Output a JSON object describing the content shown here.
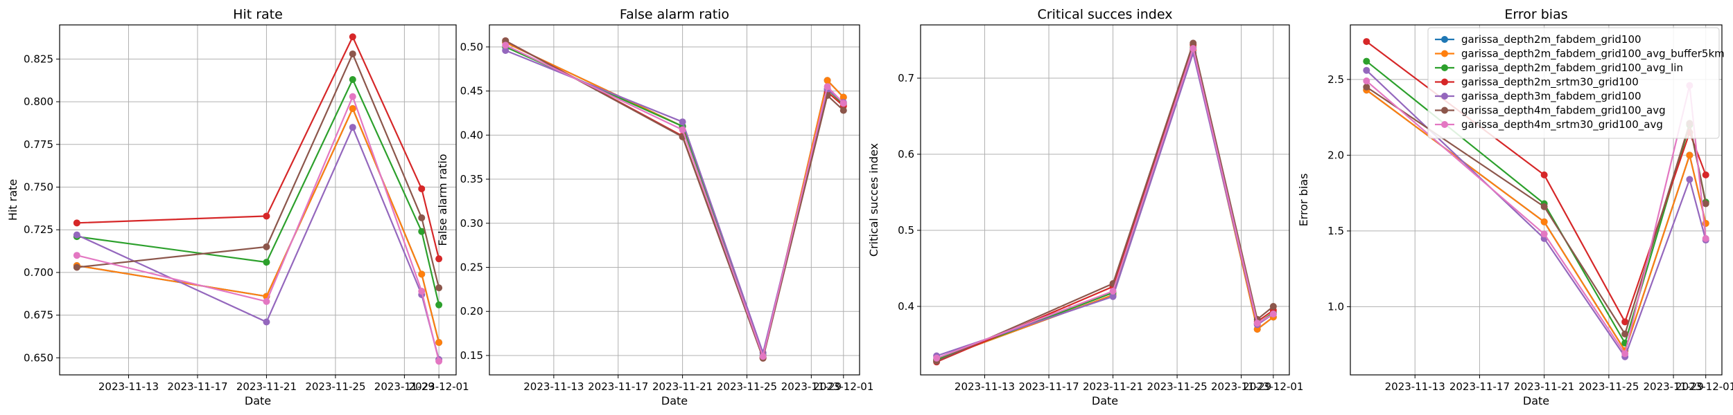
{
  "chart_data": [
    {
      "type": "line",
      "title": "Hit rate",
      "xlabel": "Date",
      "ylabel": "Hit rate",
      "x": [
        "2023-11-10",
        "2023-11-21",
        "2023-11-26",
        "2023-11-30",
        "2023-12-01"
      ],
      "xlim": [
        "2023-11-09",
        "2023-12-02"
      ],
      "xticks": [
        "2023-11-13",
        "2023-11-17",
        "2023-11-21",
        "2023-11-25",
        "2023-11-29",
        "2023-12-01"
      ],
      "ylim": [
        0.64,
        0.845
      ],
      "yticks": [
        0.65,
        0.675,
        0.7,
        0.725,
        0.75,
        0.775,
        0.8,
        0.825
      ],
      "ytick_labels": [
        "0.650",
        "0.675",
        "0.700",
        "0.725",
        "0.750",
        "0.775",
        "0.800",
        "0.825"
      ],
      "grid": true,
      "series": [
        {
          "name": "garissa_depth2m_fabdem_grid100",
          "color": "#1f77b4",
          "values": [
            0.704,
            0.686,
            0.796,
            0.699,
            0.659
          ]
        },
        {
          "name": "garissa_depth2m_fabdem_grid100_avg_buffer5km",
          "color": "#ff7f0e",
          "values": [
            0.704,
            0.686,
            0.796,
            0.699,
            0.659
          ]
        },
        {
          "name": "garissa_depth2m_fabdem_grid100_avg_lin",
          "color": "#2ca02c",
          "values": [
            0.721,
            0.706,
            0.813,
            0.724,
            0.681
          ]
        },
        {
          "name": "garissa_depth2m_srtm30_grid100",
          "color": "#d62728",
          "values": [
            0.729,
            0.733,
            0.838,
            0.749,
            0.708
          ]
        },
        {
          "name": "garissa_depth3m_fabdem_grid100",
          "color": "#9467bd",
          "values": [
            0.722,
            0.671,
            0.785,
            0.687,
            0.649
          ]
        },
        {
          "name": "garissa_depth4m_fabdem_grid100_avg",
          "color": "#8c564b",
          "values": [
            0.703,
            0.715,
            0.828,
            0.732,
            0.691
          ]
        },
        {
          "name": "garissa_depth4m_srtm30_grid100_avg",
          "color": "#e377c2",
          "values": [
            0.71,
            0.683,
            0.803,
            0.689,
            0.648
          ]
        }
      ]
    },
    {
      "type": "line",
      "title": "False alarm ratio",
      "xlabel": "Date",
      "ylabel": "False alarm ratio",
      "x": [
        "2023-11-10",
        "2023-11-21",
        "2023-11-26",
        "2023-11-30",
        "2023-12-01"
      ],
      "xlim": [
        "2023-11-09",
        "2023-12-02"
      ],
      "xticks": [
        "2023-11-13",
        "2023-11-17",
        "2023-11-21",
        "2023-11-25",
        "2023-11-29",
        "2023-12-01"
      ],
      "ylim": [
        0.128,
        0.525
      ],
      "yticks": [
        0.15,
        0.2,
        0.25,
        0.3,
        0.35,
        0.4,
        0.45,
        0.5
      ],
      "ytick_labels": [
        "0.15",
        "0.20",
        "0.25",
        "0.30",
        "0.35",
        "0.40",
        "0.45",
        "0.50"
      ],
      "grid": true,
      "series": [
        {
          "name": "garissa_depth2m_fabdem_grid100",
          "color": "#1f77b4",
          "values": [
            0.505,
            0.41,
            0.148,
            0.462,
            0.443
          ]
        },
        {
          "name": "garissa_depth2m_fabdem_grid100_avg_buffer5km",
          "color": "#ff7f0e",
          "values": [
            0.505,
            0.41,
            0.148,
            0.462,
            0.443
          ]
        },
        {
          "name": "garissa_depth2m_fabdem_grid100_avg_lin",
          "color": "#2ca02c",
          "values": [
            0.5,
            0.41,
            0.15,
            0.452,
            0.435
          ]
        },
        {
          "name": "garissa_depth2m_srtm30_grid100",
          "color": "#d62728",
          "values": [
            0.507,
            0.399,
            0.147,
            0.449,
            0.433
          ]
        },
        {
          "name": "garissa_depth3m_fabdem_grid100",
          "color": "#9467bd",
          "values": [
            0.496,
            0.415,
            0.153,
            0.452,
            0.437
          ]
        },
        {
          "name": "garissa_depth4m_fabdem_grid100_avg",
          "color": "#8c564b",
          "values": [
            0.507,
            0.398,
            0.147,
            0.445,
            0.428
          ]
        },
        {
          "name": "garissa_depth4m_srtm30_grid100_avg",
          "color": "#e377c2",
          "values": [
            0.502,
            0.406,
            0.149,
            0.455,
            0.436
          ]
        }
      ]
    },
    {
      "type": "line",
      "title": "Critical succes index",
      "xlabel": "Date",
      "ylabel": "Critical succes index",
      "x": [
        "2023-11-10",
        "2023-11-21",
        "2023-11-26",
        "2023-11-30",
        "2023-12-01"
      ],
      "xlim": [
        "2023-11-09",
        "2023-12-02"
      ],
      "xticks": [
        "2023-11-13",
        "2023-11-17",
        "2023-11-21",
        "2023-11-25",
        "2023-11-29",
        "2023-12-01"
      ],
      "ylim": [
        0.31,
        0.77
      ],
      "yticks": [
        0.4,
        0.5,
        0.6,
        0.7
      ],
      "ytick_labels": [
        "0.4",
        "0.5",
        "0.6",
        "0.7"
      ],
      "grid": true,
      "series": [
        {
          "name": "garissa_depth2m_fabdem_grid100",
          "color": "#1f77b4",
          "values": [
            0.33,
            0.415,
            0.737,
            0.37,
            0.386
          ]
        },
        {
          "name": "garissa_depth2m_fabdem_grid100_avg_buffer5km",
          "color": "#ff7f0e",
          "values": [
            0.33,
            0.415,
            0.737,
            0.37,
            0.386
          ]
        },
        {
          "name": "garissa_depth2m_fabdem_grid100_avg_lin",
          "color": "#2ca02c",
          "values": [
            0.33,
            0.418,
            0.74,
            0.377,
            0.392
          ]
        },
        {
          "name": "garissa_depth2m_srtm30_grid100",
          "color": "#d62728",
          "values": [
            0.327,
            0.426,
            0.744,
            0.38,
            0.395
          ]
        },
        {
          "name": "garissa_depth3m_fabdem_grid100",
          "color": "#9467bd",
          "values": [
            0.335,
            0.413,
            0.733,
            0.376,
            0.39
          ]
        },
        {
          "name": "garissa_depth4m_fabdem_grid100_avg",
          "color": "#8c564b",
          "values": [
            0.328,
            0.43,
            0.746,
            0.383,
            0.4
          ]
        },
        {
          "name": "garissa_depth4m_srtm30_grid100_avg",
          "color": "#e377c2",
          "values": [
            0.332,
            0.42,
            0.739,
            0.378,
            0.39
          ]
        }
      ]
    },
    {
      "type": "line",
      "title": "Error bias",
      "xlabel": "Date",
      "ylabel": "Error bias",
      "x": [
        "2023-11-10",
        "2023-11-21",
        "2023-11-26",
        "2023-11-30",
        "2023-12-01"
      ],
      "xlim": [
        "2023-11-09",
        "2023-12-02"
      ],
      "xticks": [
        "2023-11-13",
        "2023-11-17",
        "2023-11-21",
        "2023-11-25",
        "2023-11-29",
        "2023-12-01"
      ],
      "ylim": [
        0.55,
        2.86
      ],
      "yticks": [
        1.0,
        1.5,
        2.0,
        2.5
      ],
      "ytick_labels": [
        "1.0",
        "1.5",
        "2.0",
        "2.5"
      ],
      "grid": true,
      "legend_position": "top-right",
      "series": [
        {
          "name": "garissa_depth2m_fabdem_grid100",
          "color": "#1f77b4",
          "values": [
            2.43,
            1.56,
            0.71,
            2.0,
            1.55
          ]
        },
        {
          "name": "garissa_depth2m_fabdem_grid100_avg_buffer5km",
          "color": "#ff7f0e",
          "values": [
            2.43,
            1.56,
            0.71,
            2.0,
            1.55
          ]
        },
        {
          "name": "garissa_depth2m_fabdem_grid100_avg_lin",
          "color": "#2ca02c",
          "values": [
            2.62,
            1.68,
            0.76,
            2.2,
            1.69
          ]
        },
        {
          "name": "garissa_depth2m_srtm30_grid100",
          "color": "#d62728",
          "values": [
            2.75,
            1.87,
            0.9,
            2.15,
            1.87
          ]
        },
        {
          "name": "garissa_depth3m_fabdem_grid100",
          "color": "#9467bd",
          "values": [
            2.56,
            1.45,
            0.67,
            1.84,
            1.44
          ]
        },
        {
          "name": "garissa_depth4m_fabdem_grid100_avg",
          "color": "#8c564b",
          "values": [
            2.45,
            1.66,
            0.82,
            2.21,
            1.68
          ]
        },
        {
          "name": "garissa_depth4m_srtm30_grid100_avg",
          "color": "#e377c2",
          "values": [
            2.49,
            1.48,
            0.69,
            2.46,
            1.45
          ]
        }
      ]
    }
  ]
}
